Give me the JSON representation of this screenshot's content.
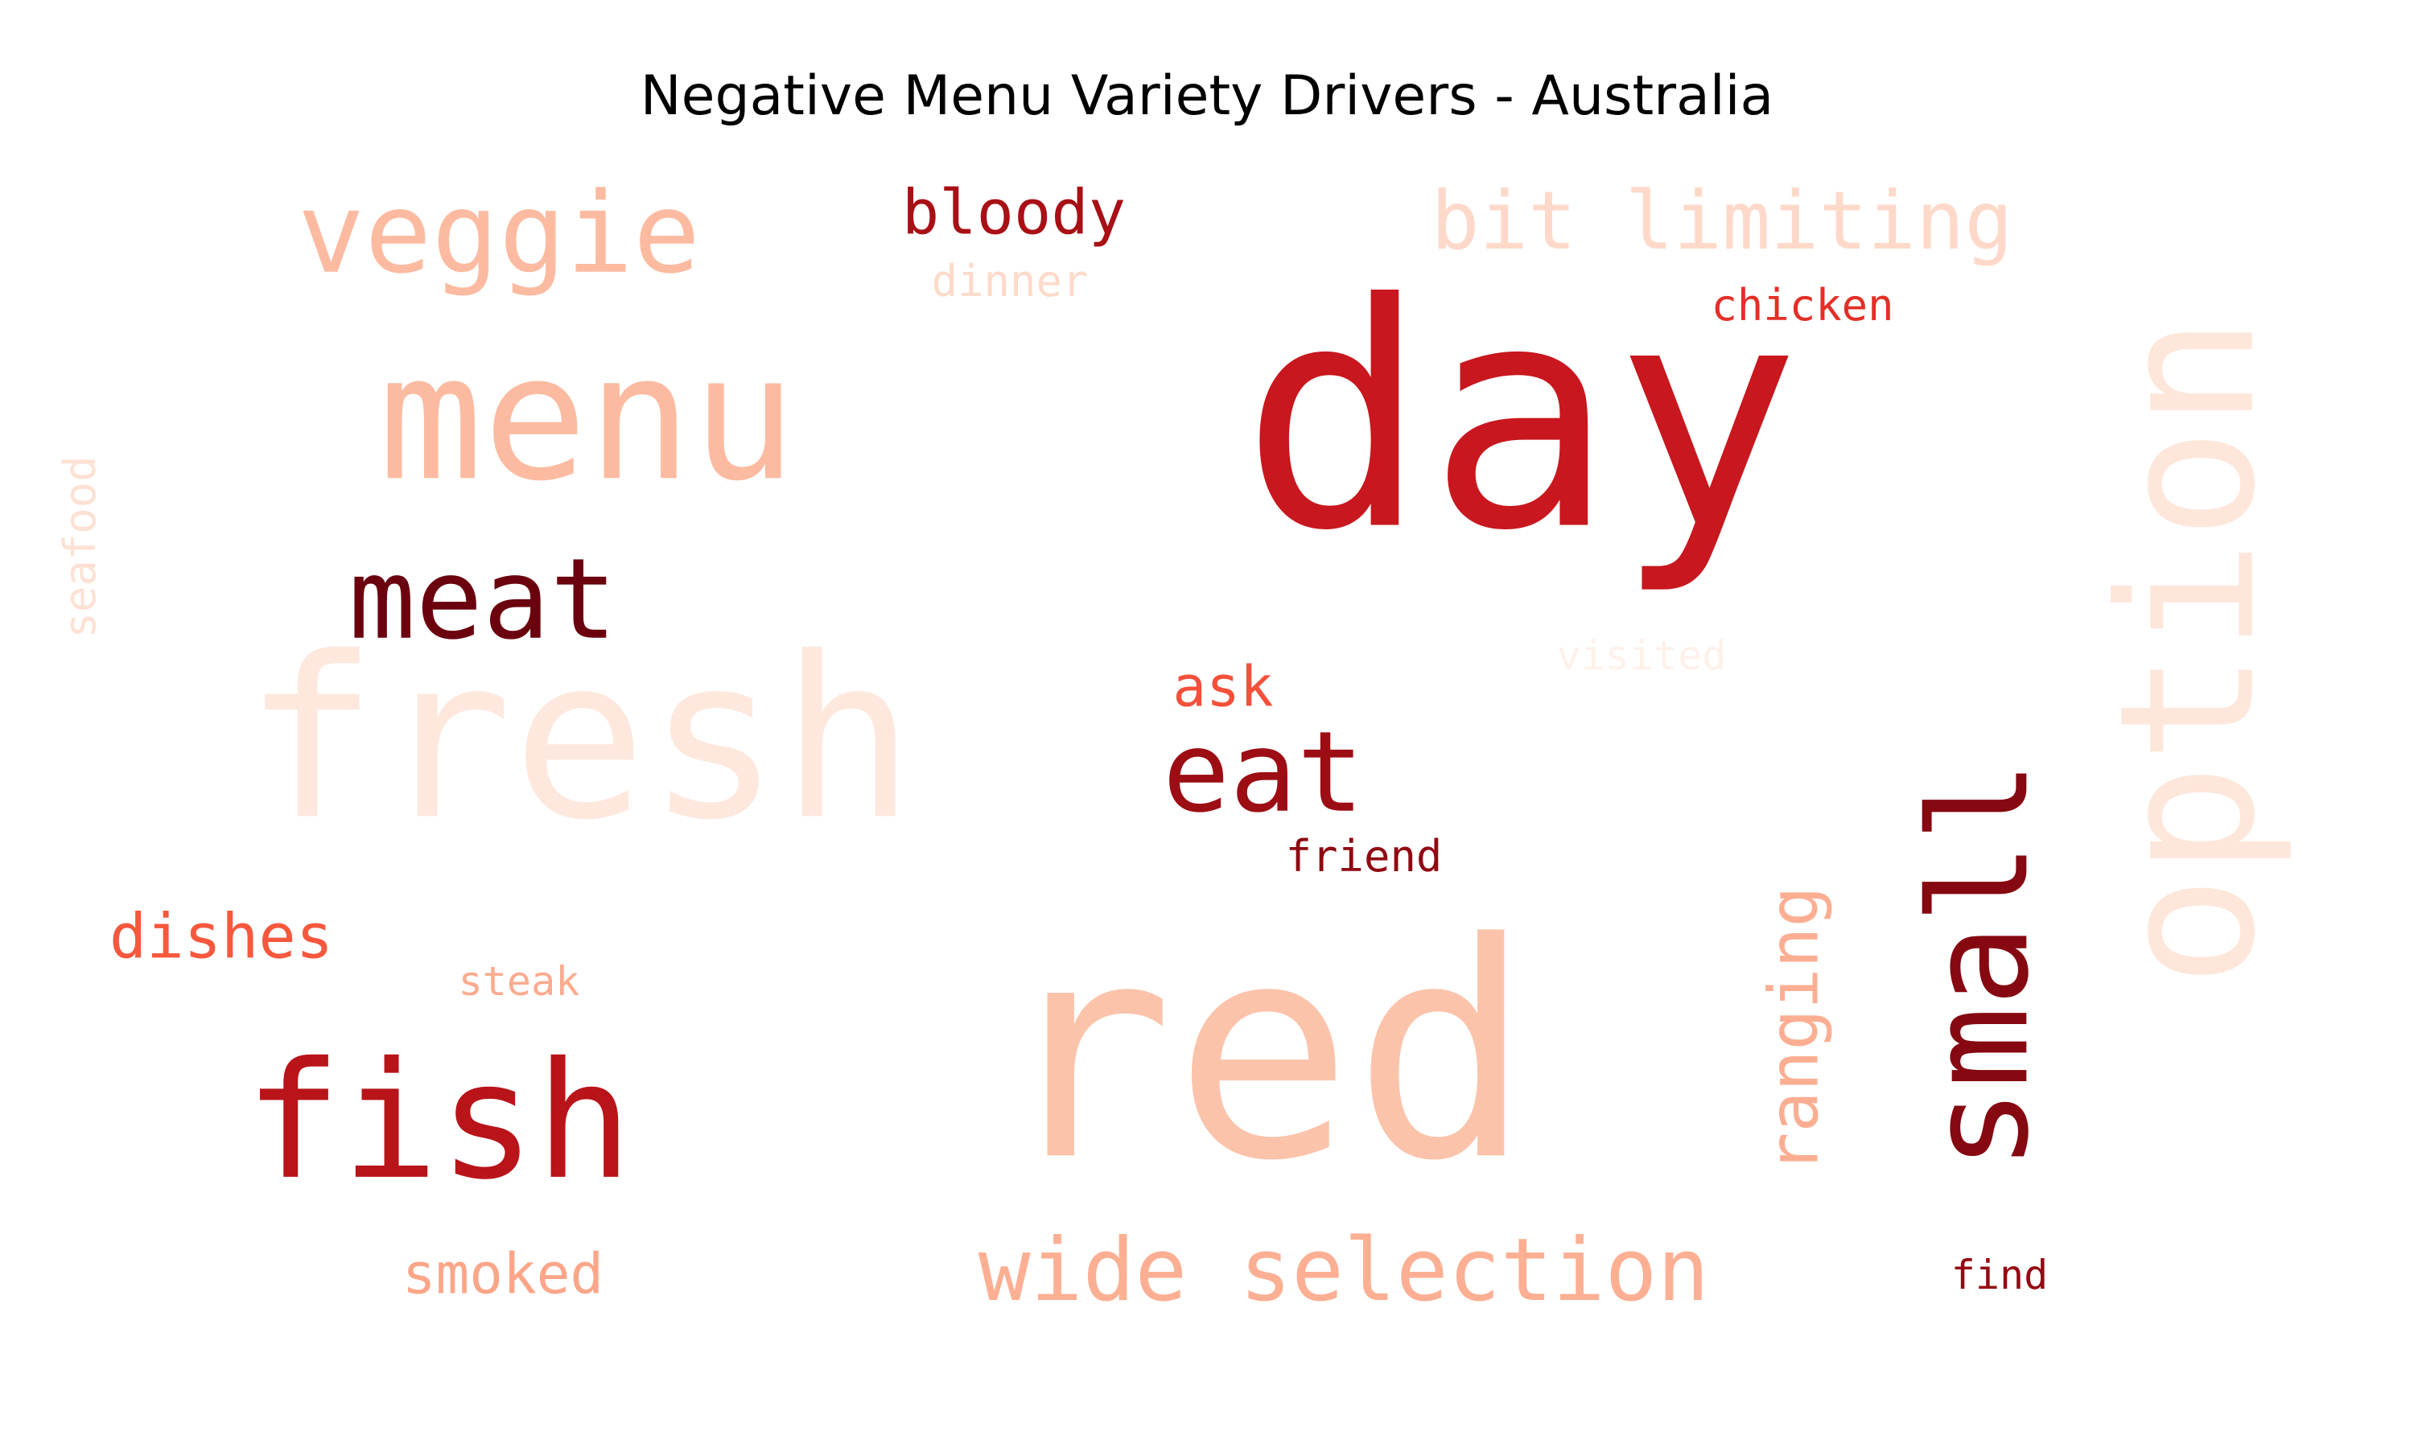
{
  "chart_data": {
    "type": "wordcloud",
    "title": "Negative Menu Variety Drivers - Australia",
    "colormap": "Reds",
    "words": [
      {
        "text": "day",
        "weight": 100,
        "color": "#c8171e",
        "orientation": "horizontal"
      },
      {
        "text": "red",
        "weight": 96,
        "color": "#fcc3ab",
        "orientation": "horizontal"
      },
      {
        "text": "fresh",
        "weight": 72,
        "color": "#fee8dd",
        "orientation": "horizontal"
      },
      {
        "text": "option",
        "weight": 60,
        "color": "#fee6da",
        "orientation": "vertical"
      },
      {
        "text": "menu",
        "weight": 56,
        "color": "#fcbba1",
        "orientation": "horizontal"
      },
      {
        "text": "fish",
        "weight": 52,
        "color": "#b81419",
        "orientation": "horizontal"
      },
      {
        "text": "small",
        "weight": 44,
        "color": "#860811",
        "orientation": "vertical"
      },
      {
        "text": "meat",
        "weight": 36,
        "color": "#6b010e",
        "orientation": "horizontal"
      },
      {
        "text": "veggie",
        "weight": 36,
        "color": "#fcbba1",
        "orientation": "horizontal"
      },
      {
        "text": "eat",
        "weight": 36,
        "color": "#9c0d14",
        "orientation": "horizontal"
      },
      {
        "text": "wide selection",
        "weight": 28,
        "color": "#fcaf93",
        "orientation": "horizontal"
      },
      {
        "text": "bit limiting",
        "weight": 26,
        "color": "#fed9c9",
        "orientation": "horizontal"
      },
      {
        "text": "ranging",
        "weight": 22,
        "color": "#fcae92",
        "orientation": "vertical"
      },
      {
        "text": "bloody",
        "weight": 20,
        "color": "#a81016",
        "orientation": "horizontal"
      },
      {
        "text": "dishes",
        "weight": 20,
        "color": "#f6583e",
        "orientation": "horizontal"
      },
      {
        "text": "smoked",
        "weight": 18,
        "color": "#fca689",
        "orientation": "horizontal"
      },
      {
        "text": "ask",
        "weight": 18,
        "color": "#f4503a",
        "orientation": "horizontal"
      },
      {
        "text": "seafood",
        "weight": 14,
        "color": "#fee1d4",
        "orientation": "vertical"
      },
      {
        "text": "chicken",
        "weight": 14,
        "color": "#e32f27",
        "orientation": "horizontal"
      },
      {
        "text": "friend",
        "weight": 14,
        "color": "#8f0912",
        "orientation": "horizontal"
      },
      {
        "text": "dinner",
        "weight": 14,
        "color": "#fedaca",
        "orientation": "horizontal"
      },
      {
        "text": "steak",
        "weight": 13,
        "color": "#fcab8f",
        "orientation": "horizontal"
      },
      {
        "text": "visited",
        "weight": 13,
        "color": "#fff1ea",
        "orientation": "horizontal"
      },
      {
        "text": "find",
        "weight": 13,
        "color": "#940b13",
        "orientation": "horizontal"
      }
    ]
  }
}
